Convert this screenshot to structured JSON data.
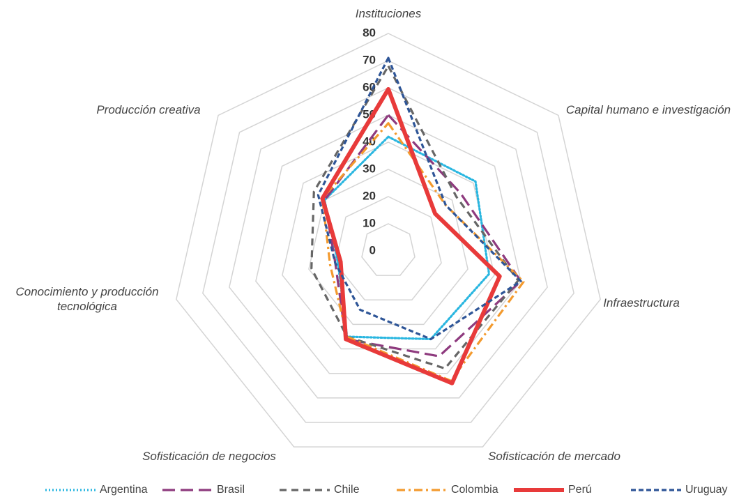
{
  "chart_data": {
    "type": "radar",
    "categories": [
      "Instituciones",
      "Capital humano e investigación",
      "Infraestructura",
      "Sofisticación de mercado",
      "Sofisticación de negocios",
      "Conocimiento y producción tecnológica",
      "Producción creativa"
    ],
    "rlim": [
      0,
      80
    ],
    "rticks": [
      0,
      10,
      20,
      30,
      40,
      50,
      60,
      70,
      80
    ],
    "grid": true,
    "legend": "bottom",
    "series": [
      {
        "name": "Argentina",
        "color": "#29b6e0",
        "style": "dotted",
        "values": [
          42,
          41,
          38,
          36,
          35,
          19,
          30
        ]
      },
      {
        "name": "Brasil",
        "color": "#8e3a7e",
        "style": "long-dash",
        "values": [
          50,
          34,
          50,
          43,
          36,
          20,
          30
        ]
      },
      {
        "name": "Chile",
        "color": "#666666",
        "style": "dashed",
        "values": [
          68,
          32,
          49,
          48,
          35,
          29,
          35
        ]
      },
      {
        "name": "Colombia",
        "color": "#f39a2e",
        "style": "dash-dot",
        "values": [
          47,
          27,
          51,
          53,
          35,
          22,
          31
        ]
      },
      {
        "name": "Perú",
        "color": "#e83a3a",
        "style": "solid",
        "values": [
          59.5,
          22,
          42,
          54,
          36,
          18,
          31
        ]
      },
      {
        "name": "Uruguay",
        "color": "#2e5597",
        "style": "short-dash",
        "values": [
          71,
          27,
          50,
          36,
          24,
          20,
          33
        ]
      }
    ]
  }
}
